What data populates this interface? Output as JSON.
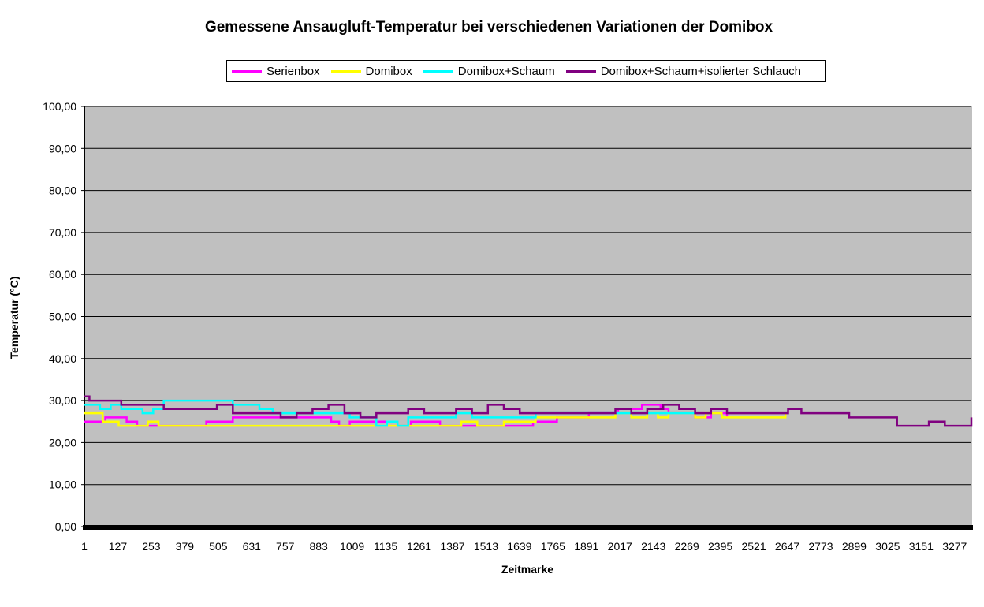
{
  "chart_data": {
    "type": "line",
    "title": "Gemessene Ansaugluft-Temperatur bei verschiedenen Variationen der Domibox",
    "xlabel": "Zeitmarke",
    "ylabel": "Temperatur (°C)",
    "ylim": [
      0,
      100
    ],
    "xlim": [
      1,
      3340
    ],
    "grid": true,
    "legend_position": "top",
    "plot_background": "#c0c0c0",
    "y_ticks": [
      "0,00",
      "10,00",
      "20,00",
      "30,00",
      "40,00",
      "50,00",
      "60,00",
      "70,00",
      "80,00",
      "90,00",
      "100,00"
    ],
    "x_ticks": [
      "1",
      "127",
      "253",
      "379",
      "505",
      "631",
      "757",
      "883",
      "1009",
      "1135",
      "1261",
      "1387",
      "1513",
      "1639",
      "1765",
      "1891",
      "2017",
      "2143",
      "2269",
      "2395",
      "2521",
      "2647",
      "2773",
      "2899",
      "3025",
      "3151",
      "3277"
    ],
    "series": [
      {
        "name": "Serienbox",
        "color": "#ff00ff",
        "x": [
          1,
          40,
          80,
          120,
          160,
          200,
          300,
          400,
          460,
          520,
          560,
          640,
          700,
          760,
          820,
          880,
          930,
          960,
          1000,
          1040,
          1090,
          1140,
          1180,
          1230,
          1290,
          1340,
          1400,
          1460,
          1520,
          1580,
          1640,
          1690,
          1730,
          1780,
          1830,
          1900,
          1960,
          2010,
          2060,
          2100,
          2140,
          2170,
          2200,
          2250,
          2300,
          2360,
          2420
        ],
        "y": [
          25,
          25,
          26,
          26,
          25,
          24,
          24,
          24,
          25,
          25,
          26,
          26,
          26,
          26,
          26,
          26,
          25,
          24,
          25,
          25,
          25,
          25,
          24,
          25,
          25,
          24,
          24,
          24,
          24,
          24,
          24,
          25,
          25,
          26,
          26,
          27,
          27,
          28,
          28,
          29,
          29,
          28,
          27,
          27,
          26,
          27,
          26
        ]
      },
      {
        "name": "Domibox",
        "color": "#ffff00",
        "x": [
          1,
          40,
          70,
          100,
          130,
          160,
          200,
          240,
          280,
          350,
          420,
          500,
          580,
          660,
          740,
          820,
          900,
          980,
          1060,
          1140,
          1220,
          1300,
          1360,
          1420,
          1480,
          1520,
          1580,
          1640,
          1700,
          1760,
          1820,
          1880,
          1940,
          2000,
          2060,
          2120,
          2160,
          2200,
          2260,
          2300,
          2340,
          2400,
          2460,
          2520,
          2580,
          2640
        ],
        "y": [
          27,
          27,
          25,
          25,
          24,
          24,
          24,
          25,
          24,
          24,
          24,
          24,
          24,
          24,
          24,
          24,
          24,
          24,
          24,
          24,
          24,
          24,
          24,
          25,
          24,
          24,
          25,
          25,
          26,
          26,
          26,
          26,
          26,
          27,
          26,
          27,
          26,
          27,
          27,
          26,
          27,
          26,
          26,
          26,
          26,
          27
        ]
      },
      {
        "name": "Domibox+Schaum",
        "color": "#00ffff",
        "x": [
          1,
          30,
          60,
          100,
          140,
          180,
          220,
          260,
          300,
          340,
          380,
          440,
          500,
          560,
          610,
          660,
          710,
          760,
          820,
          880,
          940,
          1000,
          1060,
          1100,
          1140,
          1180,
          1220,
          1280,
          1340,
          1400,
          1460,
          1520,
          1580,
          1640,
          1700,
          1760,
          1820,
          1880,
          1940,
          2000,
          2060,
          2120,
          2180,
          2240,
          2300
        ],
        "y": [
          29,
          29,
          28,
          29,
          28,
          28,
          27,
          28,
          30,
          30,
          30,
          30,
          30,
          29,
          29,
          28,
          27,
          27,
          27,
          27,
          27,
          26,
          26,
          24,
          25,
          24,
          26,
          26,
          26,
          27,
          26,
          26,
          26,
          26,
          27,
          27,
          27,
          27,
          27,
          27,
          27,
          27,
          27,
          27,
          27
        ]
      },
      {
        "name": "Domibox+Schaum+isolierter Schlauch",
        "color": "#800080",
        "x": [
          1,
          20,
          60,
          100,
          140,
          180,
          220,
          260,
          300,
          340,
          380,
          420,
          460,
          500,
          560,
          620,
          680,
          740,
          800,
          860,
          920,
          980,
          1040,
          1100,
          1160,
          1220,
          1280,
          1340,
          1400,
          1460,
          1520,
          1580,
          1640,
          1700,
          1760,
          1820,
          1880,
          1940,
          2000,
          2060,
          2120,
          2180,
          2240,
          2300,
          2360,
          2420,
          2480,
          2540,
          2600,
          2650,
          2700,
          2760,
          2820,
          2880,
          2940,
          3000,
          3060,
          3120,
          3180,
          3240,
          3300,
          3340
        ],
        "y": [
          31,
          30,
          30,
          30,
          29,
          29,
          29,
          29,
          28,
          28,
          28,
          28,
          28,
          29,
          27,
          27,
          27,
          26,
          27,
          28,
          29,
          27,
          26,
          27,
          27,
          28,
          27,
          27,
          28,
          27,
          29,
          28,
          27,
          27,
          27,
          27,
          27,
          27,
          28,
          27,
          28,
          29,
          28,
          27,
          28,
          27,
          27,
          27,
          27,
          28,
          27,
          27,
          27,
          26,
          26,
          26,
          24,
          24,
          25,
          24,
          24,
          26
        ]
      }
    ]
  }
}
